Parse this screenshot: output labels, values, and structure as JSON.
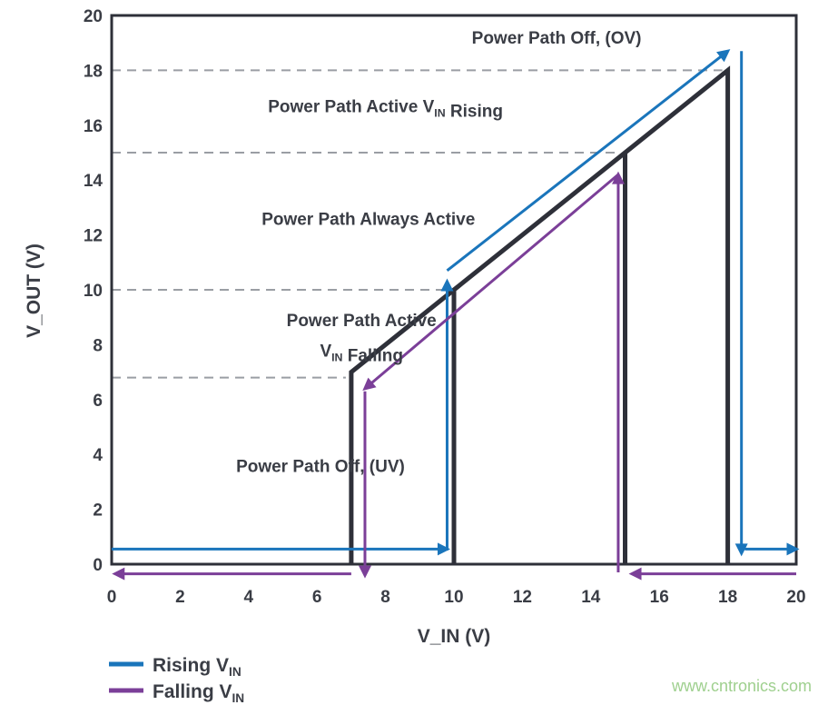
{
  "chart_data": {
    "type": "line",
    "xlabel": "V_IN (V)",
    "ylabel": "V_OUT (V)",
    "xlim": [
      0,
      20
    ],
    "ylim": [
      0,
      20
    ],
    "xticks": [
      0,
      2,
      4,
      6,
      8,
      10,
      12,
      14,
      16,
      18,
      20
    ],
    "yticks": [
      0,
      2,
      4,
      6,
      8,
      10,
      12,
      14,
      16,
      18,
      20
    ],
    "grid": false,
    "thresholds": [
      18,
      15,
      10,
      6.8
    ],
    "transfer_curve": {
      "color": "#2e3039",
      "x": [
        7,
        7,
        10,
        10,
        10,
        15,
        15,
        15,
        18,
        18
      ],
      "y": [
        0,
        7,
        10,
        0,
        10,
        15,
        0,
        15,
        18,
        0
      ]
    },
    "regions": [
      {
        "label": "Power Path Off, (OV)",
        "x": 13,
        "y": 19.2
      },
      {
        "label": "Power Path Active V_IN Rising",
        "x": 8,
        "y": 16.7
      },
      {
        "label": "Power Path Always Active",
        "x": 7.5,
        "y": 12.6
      },
      {
        "label": "Power Path Active",
        "x": 7.3,
        "y": 8.9
      },
      {
        "label": "V_IN Falling",
        "x": 7.3,
        "y": 7.8
      },
      {
        "label": "Power Path Off, (UV)",
        "x": 6.1,
        "y": 3.6
      }
    ],
    "series": [
      {
        "name": "Rising V_IN",
        "color": "#1a75bb",
        "arrows": [
          [
            [
              0,
              0.55
            ],
            [
              9.8,
              0.55
            ]
          ],
          [
            [
              9.8,
              0.5
            ],
            [
              9.8,
              10.3
            ]
          ],
          [
            [
              9.8,
              10.7
            ],
            [
              18,
              18.7
            ]
          ],
          [
            [
              18.4,
              18.7
            ],
            [
              18.4,
              0.4
            ]
          ],
          [
            [
              18.5,
              0.55
            ],
            [
              20,
              0.55
            ]
          ]
        ]
      },
      {
        "name": "Falling V_IN",
        "color": "#7b3f98",
        "arrows": [
          [
            [
              20,
              -0.35
            ],
            [
              15.2,
              -0.35
            ]
          ],
          [
            [
              14.8,
              -0.3
            ],
            [
              14.8,
              14.2
            ]
          ],
          [
            [
              14.8,
              14.2
            ],
            [
              7.4,
              6.4
            ]
          ],
          [
            [
              7.4,
              6.3
            ],
            [
              7.4,
              -0.4
            ]
          ],
          [
            [
              7,
              -0.35
            ],
            [
              0.1,
              -0.35
            ]
          ]
        ]
      }
    ],
    "legend": {
      "placement": "bottom-left",
      "entries": [
        "Rising V_IN",
        "Falling V_IN"
      ]
    }
  },
  "watermark": "www.cntronics.com"
}
